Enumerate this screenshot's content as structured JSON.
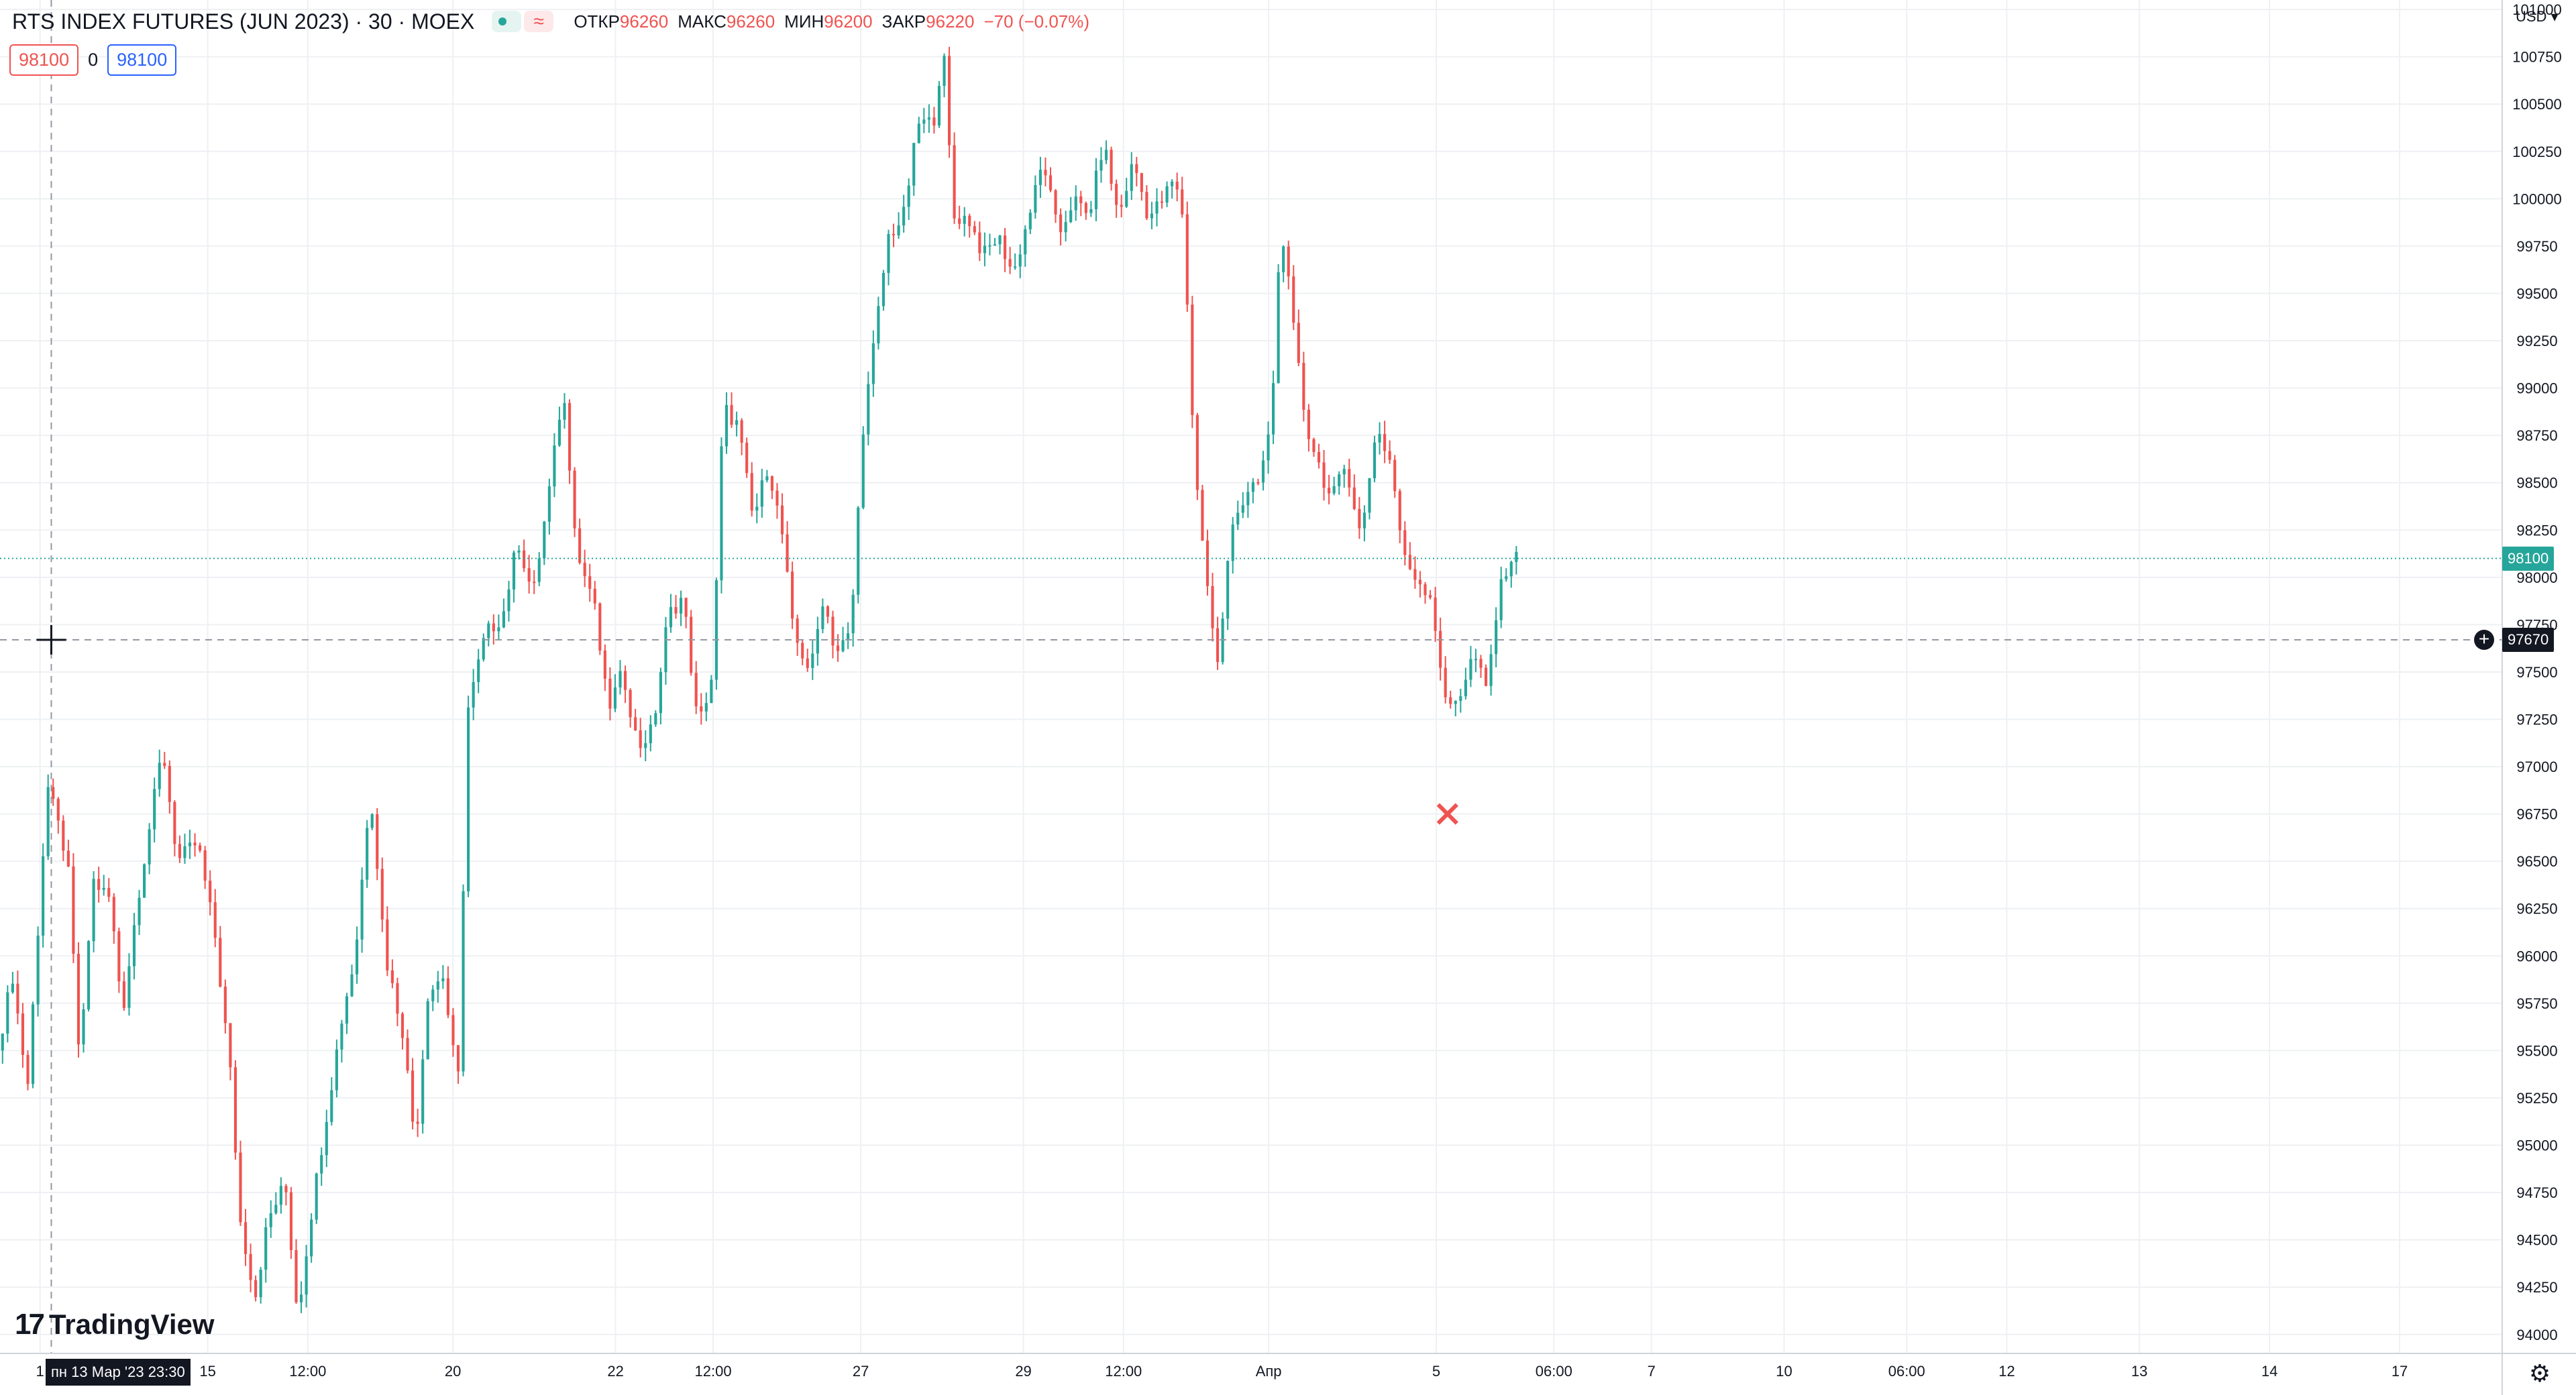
{
  "header": {
    "symbol_label": "RTS INDEX FUTURES (JUN 2023) · 30 · MOEX",
    "wave_glyph": "≈",
    "open_label": "ОТКР",
    "open_value": "96260",
    "high_label": "МАКС",
    "high_value": "96260",
    "low_label": "МИН",
    "low_value": "96200",
    "close_label": "ЗАКР",
    "close_value": "96220",
    "change": "−70 (−0.07%)"
  },
  "trade": {
    "sell_price": "98100",
    "spread": "0",
    "buy_price": "98100"
  },
  "currency_label": "USD",
  "logo_text": "TradingView",
  "logo_mark": "17",
  "crosshair": {
    "time_label": "пн 13 Мар '23   23:30",
    "price_label": "97670",
    "price": 97670
  },
  "last_price": {
    "label": "98100",
    "value": 98100
  },
  "colors": {
    "up": "#26a69a",
    "down": "#ef5350",
    "last_price": "#26a69a",
    "crosshair": "#131722"
  },
  "icons": {
    "plus": "plus-circle-icon",
    "gear": "gear-icon",
    "marker": "x-marker-icon"
  },
  "chart_data": {
    "type": "candlestick",
    "y_axis": {
      "range": [
        93900,
        101050
      ],
      "ticks": [
        94000,
        94250,
        94500,
        94750,
        95000,
        95250,
        95500,
        95750,
        96000,
        96250,
        96500,
        96750,
        97000,
        97250,
        97500,
        97750,
        98000,
        98250,
        98500,
        98750,
        99000,
        99250,
        99500,
        99750,
        100000,
        100250,
        100500,
        100750,
        101000
      ]
    },
    "x_axis": {
      "labels": [
        {
          "t": 0.016,
          "label": "1"
        },
        {
          "t": 0.083,
          "label": "15"
        },
        {
          "t": 0.123,
          "label": "12:00"
        },
        {
          "t": 0.181,
          "label": "20"
        },
        {
          "t": 0.246,
          "label": "22"
        },
        {
          "t": 0.285,
          "label": "12:00"
        },
        {
          "t": 0.344,
          "label": "27"
        },
        {
          "t": 0.409,
          "label": "29"
        },
        {
          "t": 0.449,
          "label": "12:00"
        },
        {
          "t": 0.507,
          "label": "Апр"
        },
        {
          "t": 0.574,
          "label": "5"
        },
        {
          "t": 0.621,
          "label": "06:00"
        },
        {
          "t": 0.66,
          "label": "7"
        },
        {
          "t": 0.713,
          "label": "10"
        },
        {
          "t": 0.762,
          "label": "06:00"
        },
        {
          "t": 0.802,
          "label": "12"
        },
        {
          "t": 0.855,
          "label": "13"
        },
        {
          "t": 0.907,
          "label": "14"
        },
        {
          "t": 0.959,
          "label": "17"
        }
      ]
    },
    "marker": {
      "t": 0.5785,
      "price": 96750,
      "kind": "x"
    },
    "series_anchors": [
      [
        0.0,
        95500
      ],
      [
        0.006,
        95900
      ],
      [
        0.012,
        95300
      ],
      [
        0.02,
        96900
      ],
      [
        0.028,
        96500
      ],
      [
        0.033,
        95400
      ],
      [
        0.038,
        96400
      ],
      [
        0.045,
        96300
      ],
      [
        0.05,
        95700
      ],
      [
        0.056,
        96300
      ],
      [
        0.061,
        96700
      ],
      [
        0.066,
        97100
      ],
      [
        0.072,
        96500
      ],
      [
        0.08,
        96600
      ],
      [
        0.087,
        96100
      ],
      [
        0.093,
        95400
      ],
      [
        0.097,
        94600
      ],
      [
        0.103,
        94200
      ],
      [
        0.108,
        94600
      ],
      [
        0.115,
        94800
      ],
      [
        0.12,
        94100
      ],
      [
        0.126,
        94700
      ],
      [
        0.132,
        95200
      ],
      [
        0.138,
        95700
      ],
      [
        0.143,
        96000
      ],
      [
        0.149,
        96900
      ],
      [
        0.155,
        96000
      ],
      [
        0.162,
        95600
      ],
      [
        0.167,
        95000
      ],
      [
        0.172,
        95800
      ],
      [
        0.178,
        95900
      ],
      [
        0.184,
        95300
      ],
      [
        0.188,
        97300
      ],
      [
        0.195,
        97700
      ],
      [
        0.202,
        97800
      ],
      [
        0.208,
        98200
      ],
      [
        0.214,
        97900
      ],
      [
        0.221,
        98500
      ],
      [
        0.226,
        99000
      ],
      [
        0.232,
        98100
      ],
      [
        0.238,
        97900
      ],
      [
        0.244,
        97300
      ],
      [
        0.25,
        97500
      ],
      [
        0.256,
        97100
      ],
      [
        0.262,
        97200
      ],
      [
        0.268,
        97800
      ],
      [
        0.274,
        97900
      ],
      [
        0.28,
        97200
      ],
      [
        0.286,
        97500
      ],
      [
        0.29,
        98900
      ],
      [
        0.296,
        98800
      ],
      [
        0.302,
        98300
      ],
      [
        0.308,
        98600
      ],
      [
        0.314,
        98200
      ],
      [
        0.318,
        97700
      ],
      [
        0.325,
        97500
      ],
      [
        0.33,
        97900
      ],
      [
        0.335,
        97600
      ],
      [
        0.341,
        97700
      ],
      [
        0.346,
        98800
      ],
      [
        0.351,
        99300
      ],
      [
        0.356,
        99800
      ],
      [
        0.362,
        99900
      ],
      [
        0.368,
        100400
      ],
      [
        0.374,
        100400
      ],
      [
        0.378,
        100800
      ],
      [
        0.382,
        99900
      ],
      [
        0.388,
        99900
      ],
      [
        0.394,
        99700
      ],
      [
        0.4,
        99800
      ],
      [
        0.406,
        99600
      ],
      [
        0.412,
        99900
      ],
      [
        0.418,
        100200
      ],
      [
        0.424,
        99800
      ],
      [
        0.43,
        100000
      ],
      [
        0.436,
        99900
      ],
      [
        0.442,
        100300
      ],
      [
        0.448,
        99900
      ],
      [
        0.454,
        100200
      ],
      [
        0.46,
        99900
      ],
      [
        0.466,
        100000
      ],
      [
        0.47,
        100100
      ],
      [
        0.474,
        99900
      ],
      [
        0.478,
        98700
      ],
      [
        0.483,
        98000
      ],
      [
        0.488,
        97500
      ],
      [
        0.493,
        98300
      ],
      [
        0.498,
        98400
      ],
      [
        0.504,
        98500
      ],
      [
        0.509,
        98800
      ],
      [
        0.513,
        99900
      ],
      [
        0.518,
        99300
      ],
      [
        0.523,
        98800
      ],
      [
        0.528,
        98600
      ],
      [
        0.533,
        98400
      ],
      [
        0.539,
        98600
      ],
      [
        0.545,
        98200
      ],
      [
        0.551,
        98800
      ],
      [
        0.557,
        98600
      ],
      [
        0.562,
        98100
      ],
      [
        0.567,
        98000
      ],
      [
        0.573,
        97900
      ],
      [
        0.579,
        97300
      ],
      [
        0.585,
        97400
      ],
      [
        0.59,
        97600
      ],
      [
        0.595,
        97400
      ],
      [
        0.6,
        97900
      ],
      [
        0.604,
        98100
      ],
      [
        0.607,
        98100
      ]
    ]
  }
}
